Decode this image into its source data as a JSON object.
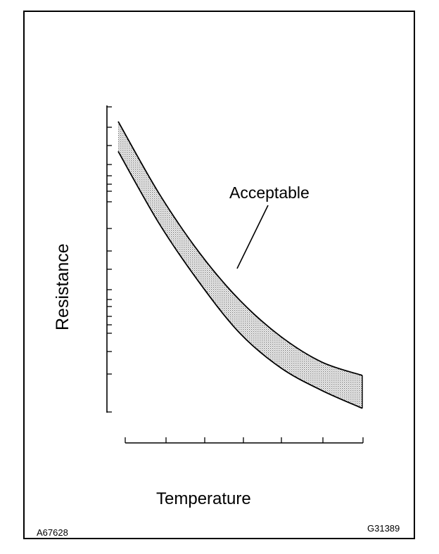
{
  "chart_data": {
    "type": "area",
    "title": "",
    "xlabel": "Temperature",
    "ylabel": "Resistance",
    "annotation": "Acceptable",
    "band": {
      "x": [
        0,
        1,
        2,
        3,
        4,
        5,
        6
      ],
      "upper": [
        0.97,
        0.73,
        0.53,
        0.37,
        0.25,
        0.165,
        0.12
      ],
      "lower": [
        0.87,
        0.63,
        0.43,
        0.26,
        0.145,
        0.07,
        0.01
      ]
    },
    "xlim": [
      0,
      6
    ],
    "ylim": [
      0,
      1
    ],
    "grid": false,
    "fill_color": "#9a9a9a",
    "line_color": "#000000"
  },
  "figure_codes": {
    "left": "A67628",
    "right": "G31389"
  }
}
